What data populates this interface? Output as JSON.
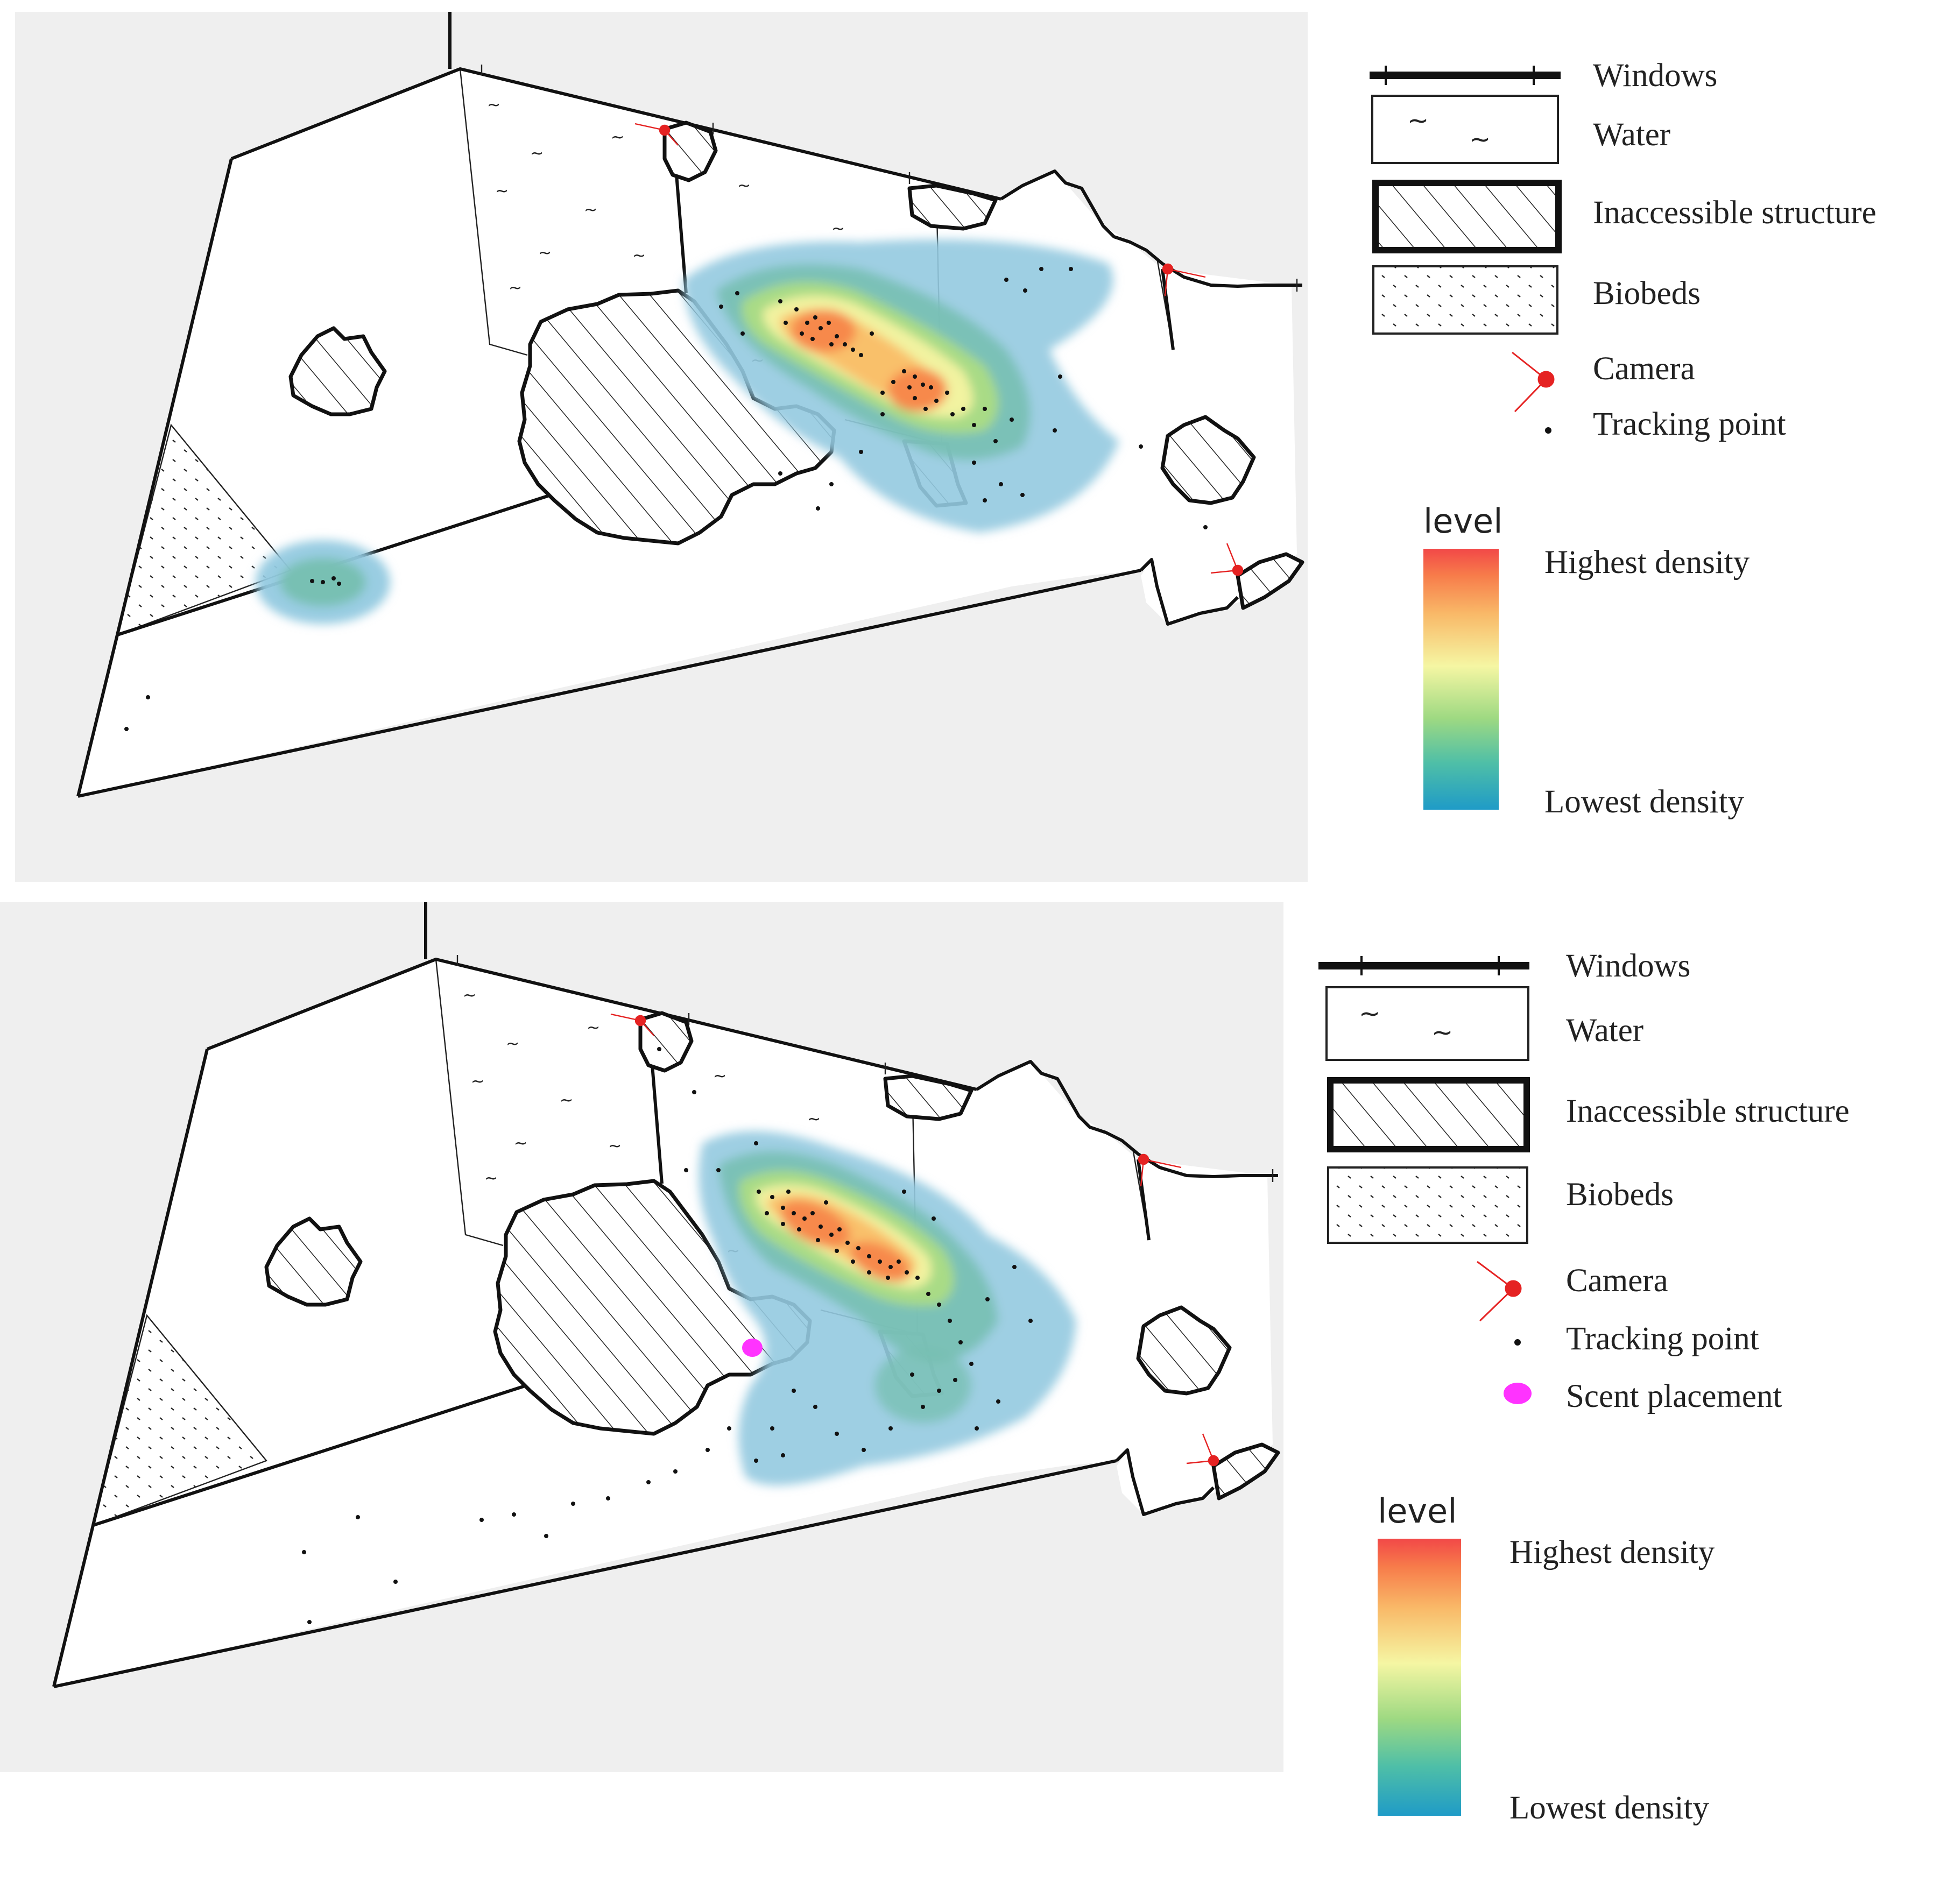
{
  "panels": [
    {
      "id": "before",
      "legend": {
        "items": [
          {
            "key": "windows",
            "label": "Windows"
          },
          {
            "key": "water",
            "label": "Water"
          },
          {
            "key": "inaccessible",
            "label": "Inaccessible structure"
          },
          {
            "key": "biobeds",
            "label": "Biobeds"
          },
          {
            "key": "camera",
            "label": "Camera"
          },
          {
            "key": "tracking",
            "label": "Tracking point"
          }
        ],
        "scale_title": "level",
        "scale_high": "Highest density",
        "scale_low": "Lowest density"
      }
    },
    {
      "id": "after",
      "legend": {
        "items": [
          {
            "key": "windows",
            "label": "Windows"
          },
          {
            "key": "water",
            "label": "Water"
          },
          {
            "key": "inaccessible",
            "label": "Inaccessible structure"
          },
          {
            "key": "biobeds",
            "label": "Biobeds"
          },
          {
            "key": "camera",
            "label": "Camera"
          },
          {
            "key": "tracking",
            "label": "Tracking point"
          },
          {
            "key": "scent",
            "label": "Scent placement"
          }
        ],
        "scale_title": "level",
        "scale_high": "Highest density",
        "scale_low": "Lowest density"
      }
    }
  ],
  "colors": {
    "background": "#efefef",
    "scale": [
      "#2b9fc4",
      "#57c2a1",
      "#a9dc86",
      "#f6f59b",
      "#f9c06b",
      "#f98a4c",
      "#f24e4e"
    ],
    "camera": "#e52222",
    "scent": "#ff33ff",
    "density_low": "#93cae0"
  }
}
